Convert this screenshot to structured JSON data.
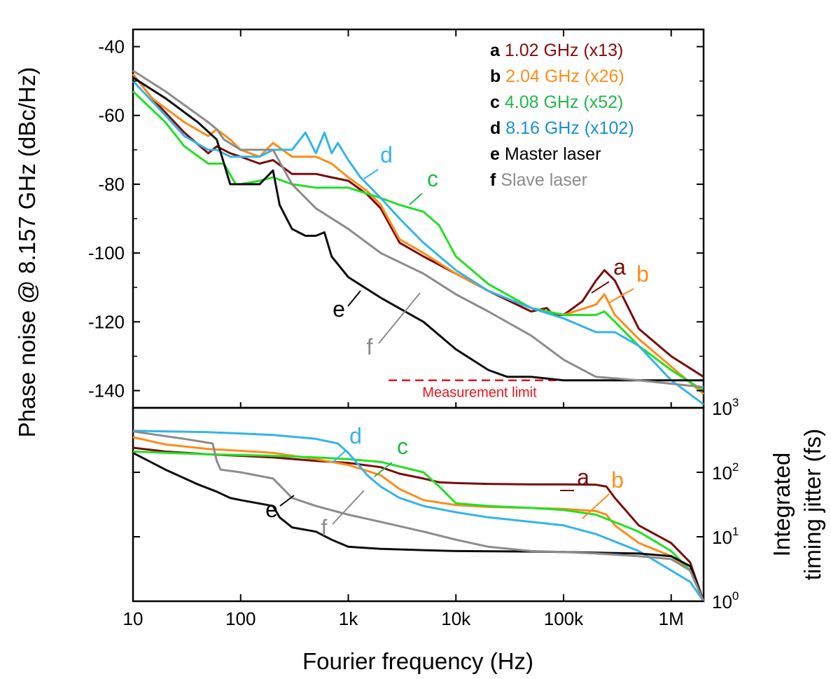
{
  "chart_data": [
    {
      "type": "line",
      "panel": "upper",
      "xscale": "log",
      "xlim": [
        10,
        2000000
      ],
      "ylim": [
        -145,
        -35
      ],
      "ylabel": "Phase noise @ 8.157 GHz (dBc/Hz)",
      "yticks": [
        -40,
        -60,
        -80,
        -100,
        -120,
        -140
      ],
      "yticklabels": [
        "-40",
        "-60",
        "-80",
        "-100",
        "-120",
        "-140"
      ],
      "legend": {
        "placement": "top-right",
        "entries": [
          {
            "key": "a",
            "label": "1.02 GHz (x13)",
            "color": "#8b0a0a"
          },
          {
            "key": "b",
            "label": "2.04 GHz (x26)",
            "color": "#ff8c1a"
          },
          {
            "key": "c",
            "label": "4.08 GHz (x52)",
            "color": "#22b84a"
          },
          {
            "key": "d",
            "label": "8.16 GHz (x102)",
            "color": "#1a8fd0"
          },
          {
            "key": "e",
            "label": "Master laser",
            "color": "#000000"
          },
          {
            "key": "f",
            "label": "Slave laser",
            "color": "#8c8c8c"
          }
        ]
      },
      "annotation": {
        "text": "Measurement limit",
        "color": "#e8141e",
        "y": -137
      },
      "series": [
        {
          "key": "a",
          "color": "#7a0c0c",
          "x": [
            10,
            15,
            30,
            50,
            60,
            80,
            100,
            150,
            200,
            300,
            500,
            700,
            1000,
            1500,
            2000,
            3000,
            5000,
            10000,
            20000,
            50000,
            70000,
            80000,
            100000,
            150000,
            200000,
            240000,
            300000,
            500000,
            1000000,
            2000000
          ],
          "y": [
            -48,
            -55,
            -65,
            -71,
            -69,
            -71,
            -72,
            -74,
            -73,
            -77,
            -77,
            -78,
            -79,
            -83,
            -87,
            -97,
            -101,
            -106,
            -111,
            -117,
            -116,
            -118,
            -118,
            -114,
            -108,
            -105,
            -108,
            -122,
            -130,
            -136
          ]
        },
        {
          "key": "b",
          "color": "#ff8c1a",
          "x": [
            10,
            15,
            30,
            50,
            60,
            80,
            100,
            150,
            200,
            300,
            500,
            700,
            1000,
            1500,
            2000,
            3000,
            5000,
            10000,
            20000,
            50000,
            100000,
            200000,
            240000,
            300000,
            500000,
            1000000,
            2000000
          ],
          "y": [
            -48,
            -55,
            -62,
            -66,
            -64,
            -67,
            -70,
            -72,
            -68,
            -72,
            -72,
            -74,
            -78,
            -82,
            -86,
            -96,
            -100,
            -106,
            -111,
            -116,
            -118,
            -115,
            -112,
            -118,
            -125,
            -133,
            -141
          ]
        },
        {
          "key": "c",
          "color": "#22e025",
          "x": [
            10,
            20,
            30,
            50,
            70,
            90,
            100,
            150,
            200,
            300,
            500,
            700,
            1000,
            2000,
            3000,
            5000,
            7000,
            10000,
            20000,
            50000,
            100000,
            200000,
            240000,
            300000,
            500000,
            1000000,
            2000000
          ],
          "y": [
            -53,
            -62,
            -69,
            -74,
            -74,
            -80,
            -80,
            -79,
            -78,
            -80,
            -81,
            -81,
            -81,
            -84,
            -86,
            -88,
            -92,
            -101,
            -109,
            -116,
            -118,
            -118,
            -117,
            -120,
            -127,
            -134,
            -140
          ]
        },
        {
          "key": "d",
          "color": "#33b4ea",
          "x": [
            10,
            20,
            30,
            50,
            60,
            80,
            100,
            150,
            200,
            300,
            400,
            500,
            600,
            700,
            800,
            1000,
            1300,
            2000,
            3000,
            5000,
            10000,
            20000,
            50000,
            100000,
            200000,
            300000,
            500000,
            1000000,
            2000000
          ],
          "y": [
            -50,
            -60,
            -66,
            -70,
            -70,
            -72,
            -72,
            -72,
            -70,
            -70,
            -65,
            -71,
            -65,
            -71,
            -68,
            -73,
            -78,
            -84,
            -90,
            -97,
            -105,
            -111,
            -116,
            -119,
            -123,
            -123,
            -127,
            -137,
            -144
          ]
        },
        {
          "key": "e",
          "color": "#0d0d0d",
          "x": [
            10,
            20,
            40,
            60,
            80,
            100,
            150,
            200,
            230,
            300,
            400,
            500,
            600,
            700,
            1000,
            2000,
            5000,
            10000,
            20000,
            30000,
            50000,
            100000,
            300000,
            1000000,
            2000000
          ],
          "y": [
            -49,
            -55,
            -62,
            -67,
            -80,
            -80,
            -80,
            -76,
            -86,
            -93,
            -95,
            -95,
            -94,
            -101,
            -107,
            -113,
            -120,
            -128,
            -134,
            -136,
            -136,
            -137,
            -137,
            -137,
            -137
          ]
        },
        {
          "key": "f",
          "color": "#8c8c8c",
          "x": [
            10,
            20,
            50,
            60,
            70,
            100,
            150,
            200,
            300,
            500,
            1000,
            2000,
            5000,
            10000,
            20000,
            50000,
            100000,
            200000,
            500000,
            1000000,
            2000000
          ],
          "y": [
            -47,
            -53,
            -62,
            -64,
            -67,
            -70,
            -70,
            -70,
            -80,
            -87,
            -93,
            -100,
            -106,
            -112,
            -117,
            -124,
            -131,
            -136,
            -137,
            -138,
            -139
          ]
        }
      ],
      "curve_labels": [
        {
          "key": "a",
          "text": "a",
          "color": "#7a0c0c"
        },
        {
          "key": "b",
          "text": "b",
          "color": "#ff8c1a"
        },
        {
          "key": "c",
          "text": "c",
          "color": "#22b84a"
        },
        {
          "key": "d",
          "text": "d",
          "color": "#33b4ea"
        },
        {
          "key": "e",
          "text": "e",
          "color": "#000000"
        },
        {
          "key": "f",
          "text": "f",
          "color": "#8c8c8c"
        }
      ]
    },
    {
      "type": "line",
      "panel": "lower",
      "xscale": "log",
      "yscale": "log",
      "xlim": [
        10,
        2000000
      ],
      "ylim": [
        1,
        1000
      ],
      "xlabel": "Fourier frequency (Hz)",
      "xticks": [
        10,
        100,
        1000,
        10000,
        100000,
        1000000
      ],
      "xticklabels": [
        "10",
        "100",
        "1k",
        "10k",
        "100k",
        "1M"
      ],
      "ylabel_line1": "Integrated",
      "ylabel_line2": "timing jitter (fs)",
      "yticks": [
        1,
        10,
        100,
        1000
      ],
      "yticklabels": [
        {
          "base": "10",
          "exp": "0"
        },
        {
          "base": "10",
          "exp": "1"
        },
        {
          "base": "10",
          "exp": "2"
        },
        {
          "base": "10",
          "exp": "3"
        }
      ],
      "series": [
        {
          "key": "a",
          "color": "#7a0c0c",
          "x": [
            10,
            20,
            50,
            100,
            200,
            500,
            1000,
            2000,
            3000,
            5000,
            7000,
            10000,
            20000,
            50000,
            100000,
            200000,
            250000,
            300000,
            500000,
            1000000,
            1500000,
            2000000
          ],
          "y": [
            240,
            210,
            190,
            180,
            170,
            150,
            140,
            120,
            95,
            80,
            70,
            68,
            66,
            65,
            65,
            64,
            60,
            40,
            15,
            8,
            4,
            1
          ]
        },
        {
          "key": "b",
          "color": "#ff8c1a",
          "x": [
            10,
            20,
            50,
            100,
            200,
            500,
            1000,
            2000,
            3000,
            5000,
            10000,
            20000,
            50000,
            100000,
            200000,
            250000,
            300000,
            500000,
            1000000,
            1500000,
            2000000
          ],
          "y": [
            350,
            270,
            230,
            215,
            200,
            160,
            130,
            90,
            55,
            37,
            31,
            29,
            28,
            27,
            25,
            22,
            15,
            8,
            5,
            3,
            1
          ]
        },
        {
          "key": "c",
          "color": "#22e025",
          "x": [
            10,
            50,
            100,
            200,
            500,
            1000,
            2000,
            5000,
            7000,
            10000,
            20000,
            50000,
            100000,
            200000,
            500000,
            1000000,
            1500000,
            2000000
          ],
          "y": [
            210,
            190,
            185,
            180,
            170,
            160,
            145,
            100,
            60,
            33,
            30,
            28,
            26,
            22,
            12,
            6,
            3,
            1
          ]
        },
        {
          "key": "d",
          "color": "#33b4ea",
          "x": [
            10,
            50,
            100,
            200,
            500,
            800,
            1000,
            1300,
            1500,
            2000,
            3000,
            5000,
            10000,
            20000,
            50000,
            100000,
            200000,
            500000,
            1000000,
            1500000,
            2000000
          ],
          "y": [
            440,
            420,
            400,
            380,
            330,
            280,
            200,
            120,
            90,
            60,
            40,
            30,
            24,
            20,
            17,
            15,
            11,
            6,
            3,
            2,
            1
          ]
        },
        {
          "key": "e",
          "color": "#0d0d0d",
          "x": [
            10,
            20,
            40,
            60,
            80,
            100,
            200,
            230,
            300,
            500,
            700,
            1000,
            2000,
            5000,
            10000,
            50000,
            100000,
            500000,
            1000000,
            1500000,
            2000000
          ],
          "y": [
            200,
            110,
            65,
            50,
            40,
            37,
            30,
            20,
            14,
            12,
            9,
            7,
            6.5,
            6.2,
            6,
            5.9,
            5.8,
            5.5,
            5,
            3.5,
            1
          ]
        },
        {
          "key": "f",
          "color": "#8c8c8c",
          "x": [
            10,
            30,
            55,
            60,
            65,
            100,
            200,
            250,
            300,
            500,
            1000,
            2000,
            5000,
            10000,
            20000,
            50000,
            100000,
            200000,
            500000,
            1000000,
            1500000,
            2000000
          ],
          "y": [
            430,
            330,
            280,
            150,
            110,
            100,
            80,
            55,
            40,
            30,
            22,
            17,
            12,
            9,
            7,
            6,
            5.8,
            5.5,
            5,
            4.5,
            3,
            1
          ]
        }
      ],
      "curve_labels": [
        {
          "key": "a",
          "text": "a",
          "color": "#7a0c0c"
        },
        {
          "key": "b",
          "text": "b",
          "color": "#ff8c1a"
        },
        {
          "key": "c",
          "text": "c",
          "color": "#22b84a"
        },
        {
          "key": "d",
          "text": "d",
          "color": "#33b4ea"
        },
        {
          "key": "e",
          "text": "e",
          "color": "#000000"
        },
        {
          "key": "f",
          "text": "f",
          "color": "#8c8c8c"
        }
      ]
    }
  ]
}
